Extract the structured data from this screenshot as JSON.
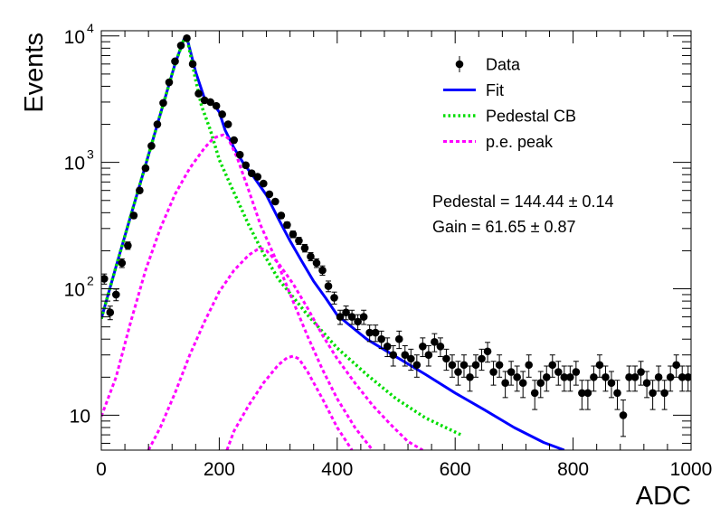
{
  "chart_data": {
    "type": "scatter",
    "xlabel": "ADC",
    "ylabel": "Events",
    "xlim": [
      0,
      1000
    ],
    "ylim": [
      5.3,
      11000
    ],
    "yscale": "log",
    "x_ticks": [
      {
        "value": 0,
        "label": "0"
      },
      {
        "value": 200,
        "label": "200"
      },
      {
        "value": 400,
        "label": "400"
      },
      {
        "value": 600,
        "label": "600"
      },
      {
        "value": 800,
        "label": "800"
      },
      {
        "value": 1000,
        "label": "1000"
      }
    ],
    "y_ticks": [
      {
        "value": 10,
        "base": "10",
        "exp": ""
      },
      {
        "value": 100,
        "base": "10",
        "exp": "2"
      },
      {
        "value": 1000,
        "base": "10",
        "exp": "3"
      },
      {
        "value": 10000,
        "base": "10",
        "exp": "4"
      }
    ],
    "legend_position": "top-right",
    "legend": [
      {
        "label": "Data",
        "kind": "marker",
        "color": "#000000"
      },
      {
        "label": "Fit",
        "kind": "solid",
        "color": "#0000ff"
      },
      {
        "label": "Pedestal CB",
        "kind": "dotted",
        "color": "#00dd00"
      },
      {
        "label": "p.e. peak",
        "kind": "dashed",
        "color": "#ff00ff"
      }
    ],
    "annotations": [
      "Pedestal = 144.44 ± 0.14",
      "Gain = 61.65 ± 0.87"
    ],
    "series": [
      {
        "name": "Data",
        "kind": "points",
        "color": "#000000",
        "x": [
          5,
          15,
          25,
          35,
          45,
          55,
          65,
          75,
          85,
          95,
          105,
          115,
          125,
          135,
          145,
          155,
          165,
          175,
          185,
          195,
          205,
          215,
          225,
          235,
          245,
          255,
          265,
          275,
          285,
          295,
          305,
          315,
          325,
          335,
          345,
          355,
          365,
          375,
          385,
          395,
          405,
          415,
          425,
          435,
          445,
          455,
          465,
          475,
          485,
          495,
          505,
          515,
          525,
          535,
          545,
          555,
          565,
          575,
          585,
          595,
          605,
          615,
          625,
          635,
          645,
          655,
          665,
          675,
          685,
          695,
          705,
          715,
          725,
          735,
          745,
          755,
          765,
          775,
          785,
          795,
          805,
          815,
          825,
          835,
          845,
          855,
          865,
          875,
          885,
          895,
          905,
          915,
          925,
          935,
          945,
          955,
          965,
          975,
          985,
          995
        ],
        "y": [
          120,
          65,
          90,
          160,
          220,
          380,
          600,
          900,
          1350,
          2000,
          2950,
          4300,
          6300,
          8400,
          9600,
          6000,
          3500,
          3100,
          3000,
          2800,
          2400,
          2000,
          1500,
          1150,
          950,
          820,
          770,
          680,
          560,
          490,
          380,
          320,
          270,
          240,
          210,
          180,
          160,
          140,
          105,
          85,
          60,
          65,
          60,
          55,
          60,
          45,
          45,
          40,
          35,
          30,
          40,
          30,
          28,
          25,
          35,
          30,
          38,
          35,
          28,
          25,
          22,
          25,
          20,
          25,
          28,
          32,
          22,
          25,
          18,
          22,
          20,
          18,
          25,
          15,
          18,
          20,
          25,
          22,
          20,
          20,
          22,
          15,
          15,
          20,
          25,
          20,
          18,
          15,
          10,
          20,
          20,
          22,
          18,
          15,
          20,
          15,
          20,
          25,
          20,
          20
        ],
        "errors": [
          11,
          8,
          9.5,
          12.6,
          14.8,
          19.5,
          24.5,
          30,
          36.7,
          44.7,
          54.3,
          65.6,
          79.4,
          91.7,
          98,
          77.5,
          59.2,
          55.7,
          54.8,
          52.9,
          49,
          44.7,
          38.7,
          33.9,
          30.8,
          28.6,
          27.7,
          26.1,
          23.7,
          22.1,
          19.5,
          17.9,
          16.4,
          15.5,
          14.5,
          13.4,
          12.6,
          11.8,
          10.2,
          9.2,
          7.7,
          8.1,
          7.7,
          7.4,
          7.7,
          6.7,
          6.7,
          6.3,
          5.9,
          5.5,
          6.3,
          5.5,
          5.3,
          5,
          5.9,
          5.5,
          6.2,
          5.9,
          5.3,
          5,
          4.7,
          5,
          4.5,
          5,
          5.3,
          5.7,
          4.7,
          5,
          4.2,
          4.7,
          4.5,
          4.2,
          5,
          3.9,
          4.2,
          4.5,
          5,
          4.7,
          4.5,
          4.5,
          4.7,
          3.9,
          3.9,
          4.5,
          5,
          4.5,
          4.2,
          3.9,
          3.2,
          4.5,
          4.5,
          4.7,
          4.2,
          3.9,
          4.5,
          3.9,
          4.5,
          5,
          4.5,
          4.5
        ]
      },
      {
        "name": "Fit",
        "kind": "solid",
        "color": "#0000ff",
        "x": [
          0,
          25,
          50,
          75,
          100,
          125,
          140,
          145,
          160,
          175,
          190,
          200,
          210,
          225,
          240,
          260,
          280,
          300,
          320,
          340,
          360,
          380,
          400,
          450,
          500,
          550,
          600,
          650,
          700,
          750,
          785
        ],
        "y": [
          58,
          150,
          380,
          950,
          2400,
          6000,
          9400,
          9800,
          5200,
          3200,
          2900,
          2500,
          1800,
          1300,
          1000,
          750,
          550,
          360,
          240,
          165,
          115,
          85,
          62,
          40,
          29,
          21,
          15,
          11,
          8,
          6.1,
          5.3
        ]
      },
      {
        "name": "Pedestal CB",
        "kind": "dotted",
        "color": "#00dd00",
        "x": [
          0,
          25,
          50,
          75,
          100,
          125,
          140,
          145,
          160,
          170,
          185,
          200,
          220,
          250,
          275,
          300,
          350,
          400,
          450,
          500,
          550,
          610
        ],
        "y": [
          58,
          150,
          380,
          950,
          2400,
          6000,
          9400,
          9800,
          4500,
          2800,
          1800,
          1050,
          650,
          320,
          190,
          120,
          62,
          34,
          21,
          13.5,
          9.5,
          7
        ]
      },
      {
        "name": "p.e. peak 1",
        "kind": "dashed",
        "color": "#ff00ff",
        "x": [
          0,
          25,
          50,
          75,
          100,
          125,
          150,
          175,
          190,
          200,
          207,
          215,
          230,
          250,
          270,
          300,
          325,
          350,
          375,
          400,
          430,
          460
        ],
        "y": [
          9.8,
          20,
          55,
          140,
          300,
          560,
          900,
          1300,
          1550,
          1620,
          1650,
          1550,
          1100,
          600,
          320,
          155,
          80,
          42,
          23,
          13.5,
          8,
          5.3
        ]
      },
      {
        "name": "p.e. peak 2",
        "kind": "dashed",
        "color": "#ff00ff",
        "x": [
          80,
          100,
          125,
          150,
          175,
          200,
          225,
          250,
          265,
          270,
          280,
          300,
          325,
          350,
          375,
          400,
          430,
          460,
          490,
          520,
          545
        ],
        "y": [
          5.3,
          8,
          15,
          30,
          55,
          95,
          140,
          185,
          205,
          210,
          200,
          160,
          110,
          70,
          43,
          28,
          18,
          12,
          8.5,
          6.2,
          5.3
        ]
      },
      {
        "name": "p.e. peak 3",
        "kind": "dashed",
        "color": "#ff00ff",
        "x": [
          213,
          225,
          250,
          275,
          300,
          315,
          325,
          335,
          350,
          375,
          400,
          425
        ],
        "y": [
          5.3,
          7.5,
          12,
          18,
          25,
          28.5,
          29.3,
          28,
          22,
          13.5,
          8,
          5.3
        ]
      }
    ]
  }
}
